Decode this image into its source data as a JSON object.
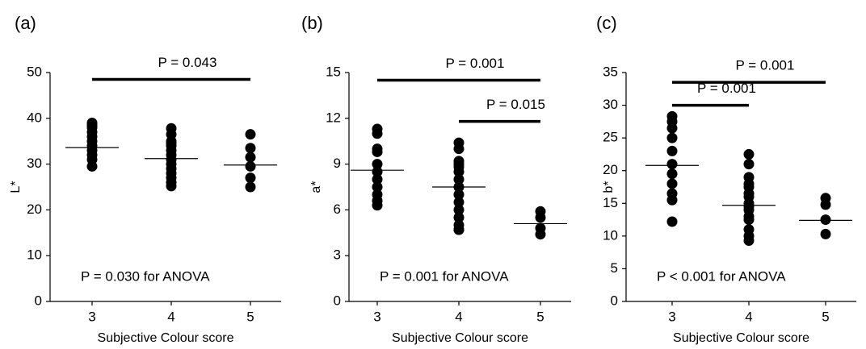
{
  "chart_data": [
    {
      "type": "scatter",
      "panel": "(a)",
      "ylabel": "L*",
      "xlabel": "Subjective Colour score",
      "color": "#000000",
      "categories": [
        "3",
        "4",
        "5"
      ],
      "points": [
        [
          39,
          38.5,
          38,
          37,
          36,
          35,
          34,
          33,
          32,
          31,
          29.5
        ],
        [
          37.8,
          36.5,
          35,
          34.5,
          34,
          33,
          32,
          31,
          30,
          29,
          28,
          27,
          26,
          25.2
        ],
        [
          36.5,
          33.5,
          31.5,
          29.5,
          27,
          25
        ]
      ],
      "means": [
        33.6,
        31.2,
        29.8
      ],
      "ylim": [
        0,
        50
      ],
      "yticks": [
        0,
        10,
        20,
        30,
        40,
        50
      ],
      "comparisons": [
        {
          "from": "3",
          "to": "5",
          "y": 48.5,
          "label": "P = 0.043"
        }
      ],
      "anova": "P = 0.030 for ANOVA"
    },
    {
      "type": "scatter",
      "panel": "(b)",
      "ylabel": "a*",
      "xlabel": "Subjective Colour score",
      "color": "#000000",
      "categories": [
        "3",
        "4",
        "5"
      ],
      "points": [
        [
          11.3,
          11,
          10,
          9.8,
          9,
          8.5,
          8,
          7.5,
          7,
          6.6,
          6.3
        ],
        [
          10.4,
          10,
          9.2,
          9,
          8.8,
          8.5,
          8,
          7.5,
          7,
          6.5,
          6,
          5.5,
          5,
          4.7,
          4.7
        ],
        [
          5.9,
          5.5,
          4.8,
          4.4
        ]
      ],
      "means": [
        8.6,
        7.5,
        5.1
      ],
      "ylim": [
        0,
        15
      ],
      "yticks": [
        0,
        3,
        6,
        9,
        12,
        15
      ],
      "comparisons": [
        {
          "from": "3",
          "to": "5",
          "y": 14.5,
          "label": "P = 0.001"
        },
        {
          "from": "4",
          "to": "5",
          "y": 11.8,
          "label": "P = 0.015"
        }
      ],
      "anova": "P = 0.001 for ANOVA"
    },
    {
      "type": "scatter",
      "panel": "(c)",
      "ylabel": "b*",
      "xlabel": "Subjective Colour score",
      "color": "#000000",
      "categories": [
        "3",
        "4",
        "5"
      ],
      "points": [
        [
          28.3,
          27.5,
          26.5,
          25,
          23,
          21,
          19.5,
          18,
          16.5,
          15.5,
          12.2
        ],
        [
          22.5,
          21,
          19,
          18,
          17.5,
          16.5,
          16,
          15,
          14.5,
          14,
          13,
          12.5,
          11,
          10,
          9.3
        ],
        [
          15.8,
          14.8,
          12.5,
          10.3
        ]
      ],
      "means": [
        20.8,
        14.7,
        12.4
      ],
      "ylim": [
        0,
        35
      ],
      "yticks": [
        0,
        5,
        10,
        15,
        20,
        25,
        30,
        35
      ],
      "comparisons": [
        {
          "from": "3",
          "to": "4",
          "y": 30,
          "label": "P = 0.001"
        },
        {
          "from": "3",
          "to": "5",
          "y": 33.5,
          "label": "P = 0.001"
        }
      ],
      "anova": "P < 0.001 for ANOVA"
    }
  ]
}
